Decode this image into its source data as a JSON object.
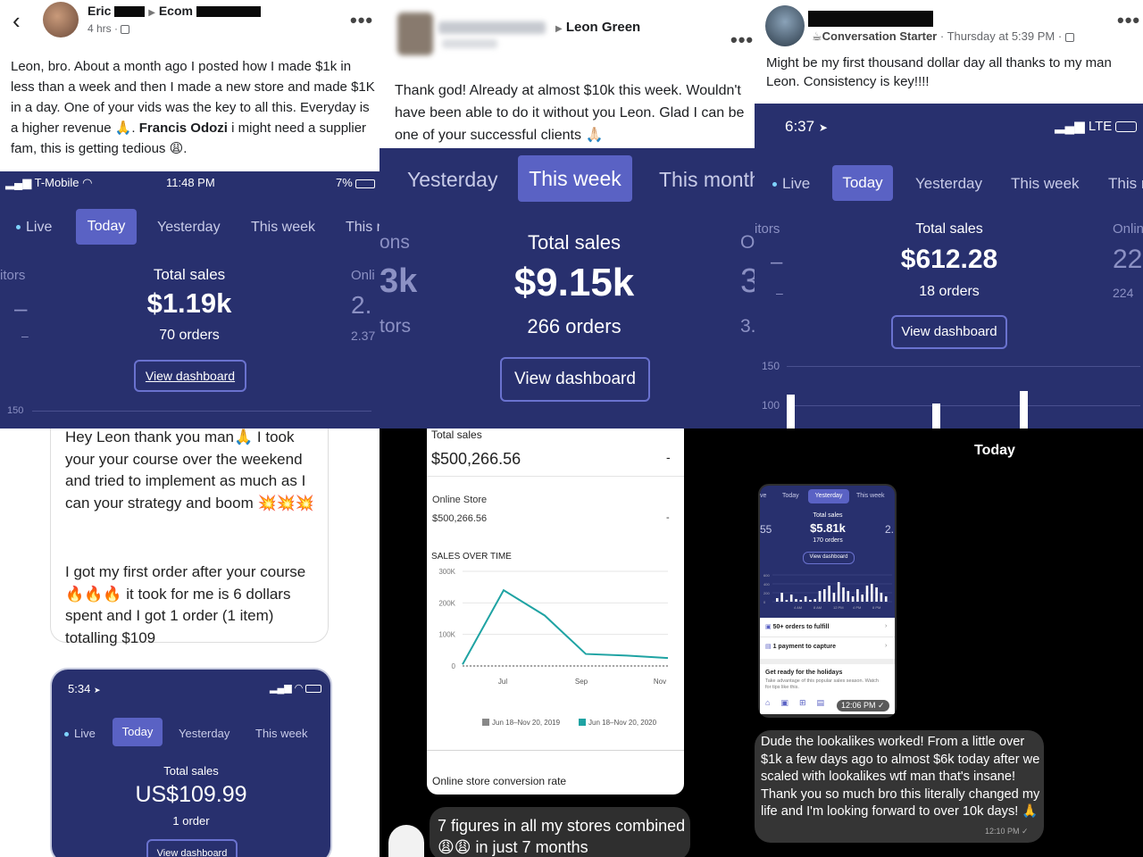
{
  "panel1": {
    "post": {
      "author": "Eric",
      "arrow": "▶",
      "group": "Ecom",
      "time": "4 hrs ·",
      "more": "•••",
      "text_before_mention": "Leon, bro. About a month ago I posted how I made $1k in less than a week and then I made a new store and made $1K in a day. One of your vids was the key to all this. Everyday is a higher revenue 🙏.",
      "mention": "Francis Odozi",
      "text_after_mention": " i might need a supplier fam, this is getting tedious 😩."
    },
    "phone": {
      "carrier": "T-Mobile",
      "time": "11:48 PM",
      "battery": "7%",
      "tabs": [
        "Live",
        "Today",
        "Yesterday",
        "This week",
        "This r"
      ],
      "left_label": "itors",
      "left_value": "–",
      "left_sub": "–",
      "total_label": "Total sales",
      "total_value": "$1.19k",
      "orders": "70 orders",
      "right_label": "Onli",
      "right_value": "2.",
      "right_sub": "2.37",
      "dashboard": "View dashboard",
      "axis_value": "150"
    }
  },
  "panel2": {
    "post": {
      "author": "Leon Green",
      "more": "•••",
      "text": "Thank god! Already at almost $10k this week. Wouldn't have been able to do it without you Leon. Glad I can be one of your successful clients 🙏🏻"
    },
    "phone": {
      "tabs": [
        "Yesterday",
        "This week",
        "This month"
      ],
      "left_label": "ons",
      "left_value": "3k",
      "left_sub": "tors",
      "total_label": "Total sales",
      "total_value": "$9.15k",
      "orders": "266 orders",
      "right_label": "O",
      "right_value": "3",
      "right_sub": "3.",
      "dashboard": "View dashboard"
    }
  },
  "panel3": {
    "post": {
      "badge": "☕Conversation Starter",
      "time": " · Thursday at 5:39 PM ·",
      "more": "•••",
      "text": "Might be my first thousand dollar day all thanks to my man Leon. Consistency is key!!!!"
    },
    "phone": {
      "time": "6:37",
      "network": "LTE",
      "tabs": [
        "Live",
        "Today",
        "Yesterday",
        "This week",
        "This r"
      ],
      "left_label": "itors",
      "left_value": "–",
      "left_sub": "–",
      "total_label": "Total sales",
      "total_value": "$612.28",
      "orders": "18 orders",
      "right_label": "Onlin",
      "right_value": "22",
      "right_sub": "224",
      "dashboard": "View dashboard",
      "axis": [
        "150",
        "100"
      ]
    }
  },
  "panel4": {
    "message": "Hey Leon thank you man🙏 I took your your course over the weekend and tried to implement as much as I can your strategy and boom 💥💥💥",
    "message2": "I got my first order after your course 🔥🔥🔥 it took for me is 6 dollars spent and I got 1 order (1 item) totalling $109",
    "phone": {
      "time": "5:34",
      "tabs": [
        "Live",
        "Today",
        "Yesterday",
        "This week"
      ],
      "total_label": "Total sales",
      "total_value": "US$109.99",
      "orders": "1 order",
      "dashboard": "View dashboard"
    }
  },
  "panel5": {
    "total_label": "Total sales",
    "total_value": "$500,266.56",
    "dash": "-",
    "online_label": "Online Store",
    "online_value": "$500,266.56",
    "online_dash": "-",
    "chart_title": "SALES OVER TIME",
    "footer": "Online store conversion rate",
    "caption": "7 figures in all my stores combined 😩😩 in just 7 months",
    "chart_data": {
      "type": "line",
      "title": "SALES OVER TIME",
      "x": [
        "Jul",
        "Sep",
        "Nov"
      ],
      "ylim": [
        0,
        300000
      ],
      "yticks": [
        "0",
        "100K",
        "200K",
        "300K"
      ],
      "series": [
        {
          "name": "Jun 18–Nov 20, 2019",
          "color": "#888888",
          "points": [
            [
              0,
              0
            ],
            [
              1,
              0
            ],
            [
              2,
              0
            ],
            [
              3,
              0
            ],
            [
              4,
              0
            ],
            [
              5,
              0
            ]
          ]
        },
        {
          "name": "Jun 18–Nov 20, 2020",
          "color": "#1fa3a3",
          "points": [
            [
              0,
              5000
            ],
            [
              1,
              240000
            ],
            [
              2,
              160000
            ],
            [
              3,
              38000
            ],
            [
              4,
              33000
            ],
            [
              5,
              25000
            ]
          ]
        }
      ]
    }
  },
  "panel6": {
    "header": "Today",
    "mini": {
      "tabs": [
        "ve",
        "Today",
        "Yesterday",
        "This week"
      ],
      "total_label": "Total sales",
      "total_value": "$5.81k",
      "orders": "170 orders",
      "dashboard": "View dashboard",
      "left_value": "55",
      "right_value": "2.",
      "axis": [
        "600",
        "400",
        "200",
        "0"
      ],
      "x_labels": [
        "4 AM",
        "8 AM",
        "12 PM",
        "4 PM",
        "8 PM"
      ],
      "fulfill": "50+ orders to fulfill",
      "capture": "1 payment to capture",
      "holidays_title": "Get ready for the holidays",
      "holidays_text": "Take advantage of this popular sales season. Watch for tips like this.",
      "stamp": "12:06 PM ✓"
    },
    "bubble": "Dude the lookalikes worked! From a little over $1k a few days ago to almost $6k today after we scaled with lookalikes wtf man that's insane! Thank you so much bro this literally changed my life and I'm looking forward to over 10k days! 🙏",
    "bubble_time": "12:10 PM ✓"
  }
}
